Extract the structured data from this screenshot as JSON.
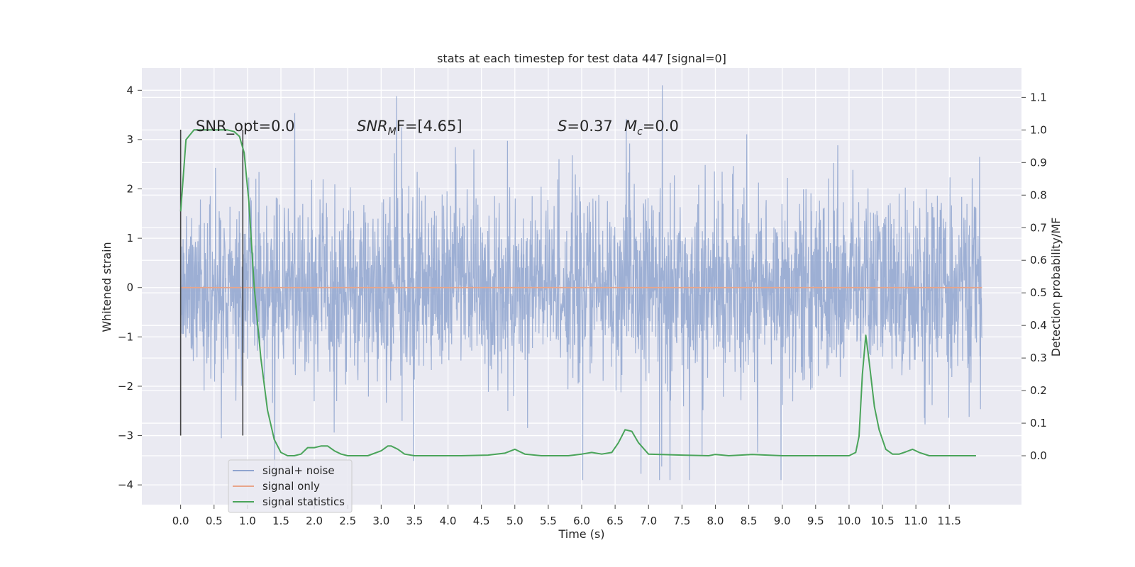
{
  "chart_data": {
    "type": "line",
    "title": "stats at each timestep for test data 447 [signal=0]",
    "xlabel": "Time (s)",
    "ylabel": "Whitened strain",
    "ylabel_right": "Detection probability/MF",
    "xlim": [
      -0.58,
      12.58
    ],
    "ylim": [
      -4.4,
      4.45
    ],
    "ylim_right": [
      -0.15,
      1.19
    ],
    "x_ticks": [
      0.0,
      0.5,
      1.0,
      1.5,
      2.0,
      2.5,
      3.0,
      3.5,
      4.0,
      4.5,
      5.0,
      5.5,
      6.0,
      6.5,
      7.0,
      7.5,
      8.0,
      8.5,
      9.0,
      9.5,
      10.0,
      10.5,
      11.0,
      11.5
    ],
    "x_tick_labels": [
      "0.0",
      "0.5",
      "1.0",
      "1.5",
      "2.0",
      "2.5",
      "3.0",
      "3.5",
      "4.0",
      "4.5",
      "5.0",
      "5.5",
      "6.0",
      "6.5",
      "7.0",
      "7.5",
      "8.0",
      "8.5",
      "9.0",
      "9.5",
      "10.0",
      "10.5",
      "11.0",
      "11.5"
    ],
    "y_ticks": [
      -4,
      -3,
      -2,
      -1,
      0,
      1,
      2,
      3,
      4
    ],
    "y_tick_labels": [
      "−4",
      "−3",
      "−2",
      "−1",
      "0",
      "1",
      "2",
      "3",
      "4"
    ],
    "y_ticks_right": [
      0.0,
      0.1,
      0.2,
      0.3,
      0.4,
      0.5,
      0.6,
      0.7,
      0.8,
      0.9,
      1.0,
      1.1
    ],
    "y_tick_labels_right": [
      "0.0",
      "0.1",
      "0.2",
      "0.3",
      "0.4",
      "0.5",
      "0.6",
      "0.7",
      "0.8",
      "0.9",
      "1.0",
      "1.1"
    ],
    "grid": true,
    "legend_position": "lower-left",
    "annotations": {
      "snr_opt": "SNR_opt=0.0",
      "snr_mf_base": "SNR",
      "snr_mf_sub": "M",
      "snr_mf_rest": "F=[4.65]",
      "s_label": "S",
      "s_value": "=0.37",
      "mc_label": "M",
      "mc_sub": "c",
      "mc_value": "=0.0"
    },
    "vertical_lines": [
      {
        "x": 0.0,
        "y_range": [
          -3.0,
          3.2
        ]
      },
      {
        "x": 0.93,
        "y_range": [
          -3.0,
          3.2
        ]
      }
    ],
    "series": [
      {
        "name": "signal+ noise",
        "color": "#8fa4cf",
        "axis": "left",
        "t_range": [
          0.0,
          11.99
        ],
        "core_std": 0.9,
        "peak_range": [
          -3.9,
          4.1
        ]
      },
      {
        "name": "signal only",
        "color": "#e8a58a",
        "axis": "left",
        "x": [
          0.0,
          11.99
        ],
        "y": [
          0.0,
          0.0
        ]
      },
      {
        "name": "signal statistics",
        "color": "#4aa45a",
        "axis": "right",
        "x": [
          0.0,
          0.08,
          0.2,
          0.35,
          0.5,
          0.7,
          0.8,
          0.88,
          0.95,
          1.02,
          1.1,
          1.2,
          1.3,
          1.4,
          1.5,
          1.6,
          1.7,
          1.8,
          1.9,
          2.0,
          2.1,
          2.2,
          2.3,
          2.4,
          2.5,
          2.6,
          2.8,
          3.0,
          3.1,
          3.15,
          3.25,
          3.35,
          3.5,
          3.8,
          4.2,
          4.6,
          4.85,
          5.0,
          5.15,
          5.4,
          5.8,
          6.0,
          6.15,
          6.3,
          6.45,
          6.55,
          6.65,
          6.75,
          6.85,
          7.0,
          7.5,
          7.9,
          8.0,
          8.2,
          8.55,
          9.0,
          9.5,
          10.0,
          10.1,
          10.15,
          10.2,
          10.25,
          10.3,
          10.38,
          10.45,
          10.55,
          10.65,
          10.75,
          10.85,
          10.95,
          11.05,
          11.2,
          11.5,
          11.9
        ],
        "y": [
          0.75,
          0.97,
          1.0,
          1.0,
          1.0,
          1.0,
          0.995,
          0.98,
          0.93,
          0.78,
          0.52,
          0.3,
          0.14,
          0.05,
          0.01,
          0.0,
          0.0,
          0.005,
          0.025,
          0.025,
          0.03,
          0.03,
          0.015,
          0.005,
          0.0,
          0.0,
          0.0,
          0.015,
          0.03,
          0.03,
          0.02,
          0.005,
          0.0,
          0.0,
          0.0,
          0.002,
          0.008,
          0.02,
          0.005,
          0.0,
          0.0,
          0.005,
          0.01,
          0.005,
          0.01,
          0.04,
          0.08,
          0.075,
          0.04,
          0.005,
          0.002,
          0.0,
          0.004,
          0.0,
          0.004,
          0.0,
          0.0,
          0.0,
          0.01,
          0.06,
          0.25,
          0.37,
          0.29,
          0.15,
          0.08,
          0.02,
          0.005,
          0.005,
          0.012,
          0.02,
          0.01,
          0.0,
          0.0,
          0.0
        ]
      }
    ]
  }
}
